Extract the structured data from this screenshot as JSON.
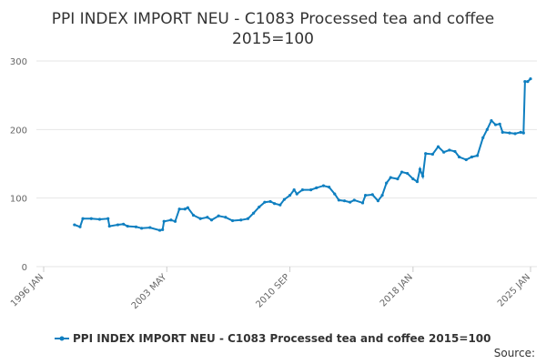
{
  "chart_data": {
    "type": "line",
    "title": [
      "PPI INDEX IMPORT NEU - C1083 Processed tea and coffee",
      "2015=100"
    ],
    "x": [
      "1997 NOV",
      "1998 MAR",
      "1998 MAY",
      "1998 NOV",
      "1999 MAY",
      "1999 NOV",
      "1999 DEC",
      "2000 JUN",
      "2000 OCT",
      "2001 JAN",
      "2001 JUL",
      "2001 NOV",
      "2002 MAY",
      "2002 DEC",
      "2003 FEB",
      "2003 MAR",
      "2003 AUG",
      "2003 NOV",
      "2004 FEB",
      "2004 JUN",
      "2004 AUG",
      "2004 DEC",
      "2005 MAY",
      "2005 OCT",
      "2006 JAN",
      "2006 JUN",
      "2006 NOV",
      "2007 APR",
      "2007 OCT",
      "2008 MAR",
      "2008 JUL",
      "2008 NOV",
      "2009 MAR",
      "2009 JUL",
      "2009 OCT",
      "2010 FEB",
      "2010 MAY",
      "2010 SEP",
      "2010 DEC",
      "2011 FEB",
      "2011 JUN",
      "2011 DEC",
      "2012 APR",
      "2012 SEP",
      "2013 JAN",
      "2013 MAY",
      "2013 AUG",
      "2013 DEC",
      "2014 APR",
      "2014 JUL",
      "2015 JAN",
      "2015 MAR",
      "2015 AUG",
      "2015 DEC",
      "2016 MAR",
      "2016 JUN",
      "2016 SEP",
      "2017 FEB",
      "2017 MAY",
      "2017 SEP",
      "2018 JAN",
      "2018 APR",
      "2018 JUN",
      "2018 AUG",
      "2018 OCT",
      "2019 MAR",
      "2019 JUL",
      "2019 NOV",
      "2020 MAR",
      "2020 JUL",
      "2020 OCT",
      "2021 MAR",
      "2021 JUL",
      "2021 NOV",
      "2022 MAR",
      "2022 JUN",
      "2022 SEP",
      "2022 DEC",
      "2023 MAR",
      "2023 MAY",
      "2023 OCT",
      "2024 FEB",
      "2024 JUN",
      "2024 AUG",
      "2024 SEP",
      "2024 NOV",
      "2025 JAN"
    ],
    "series": [
      {
        "name": "PPI INDEX IMPORT NEU - C1083 Processed tea and coffee 2015=100",
        "color": "#0f7fc0",
        "values": [
          61,
          58,
          70,
          70,
          69,
          70,
          59,
          61,
          62,
          59,
          58,
          56,
          57,
          53,
          54,
          66,
          68,
          66,
          84,
          84,
          86,
          75,
          70,
          72,
          68,
          74,
          72,
          67,
          68,
          70,
          78,
          87,
          94,
          95,
          92,
          90,
          98,
          104,
          112,
          106,
          112,
          112,
          115,
          118,
          116,
          106,
          97,
          96,
          94,
          97,
          93,
          104,
          105,
          96,
          104,
          122,
          130,
          128,
          138,
          136,
          128,
          124,
          142,
          132,
          165,
          164,
          175,
          167,
          170,
          168,
          160,
          156,
          160,
          162,
          188,
          200,
          213,
          207,
          208,
          196,
          195,
          194,
          196,
          195,
          270,
          270,
          274
        ]
      }
    ],
    "xlim": [
      "1996 JAN",
      "2025 JAN"
    ],
    "xticks": [
      "1996 JAN",
      "2003 MAY",
      "2010 SEP",
      "2018 JAN",
      "2025 JAN"
    ],
    "ylim": [
      0,
      300
    ],
    "yticks": [
      0,
      100,
      200,
      300
    ],
    "grid": true,
    "source": "Source:"
  }
}
